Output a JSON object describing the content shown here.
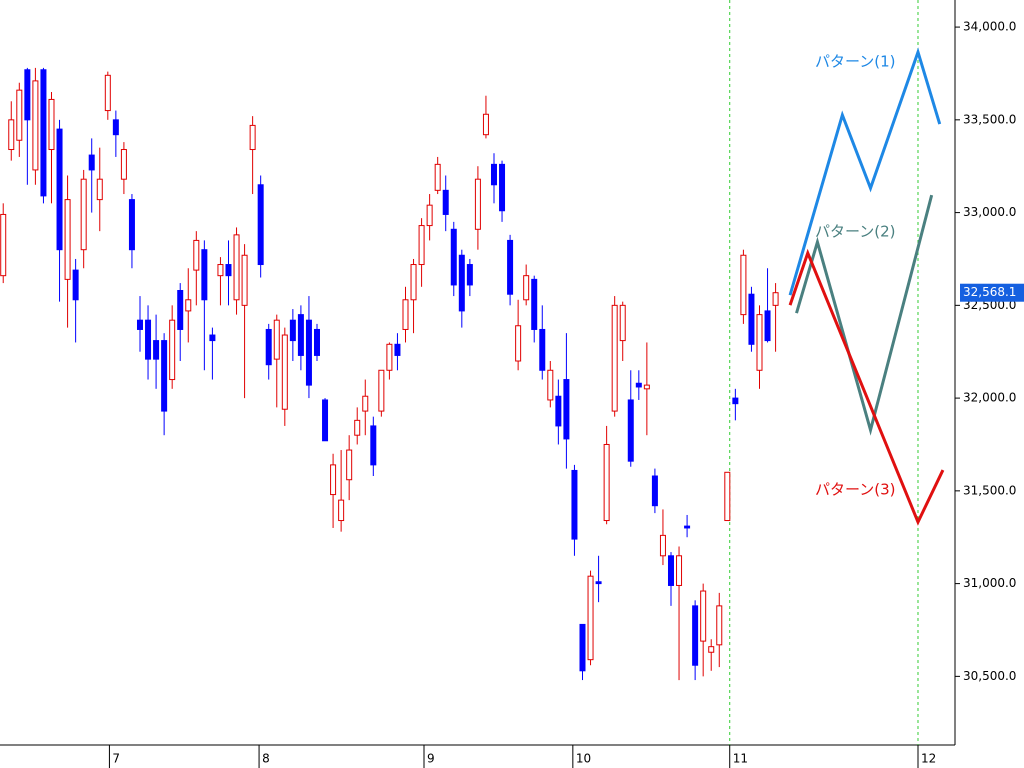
{
  "chart_data": {
    "type": "candlestick",
    "up_color": "#e00000",
    "down_color": "#0000ff",
    "x": [
      0,
      1,
      2,
      3,
      4,
      5,
      6,
      7,
      8,
      9,
      10,
      11,
      12,
      13,
      14,
      15,
      16,
      17,
      18,
      19,
      20,
      21,
      22,
      23,
      24,
      25,
      26,
      27,
      28,
      29,
      30,
      31,
      32,
      33,
      34,
      35,
      36,
      37,
      38,
      39,
      40,
      41,
      42,
      43,
      44,
      45,
      46,
      47,
      48,
      49,
      50,
      51,
      52,
      53,
      54,
      55,
      56,
      57,
      58,
      59,
      60,
      61,
      62,
      63,
      64,
      65,
      66,
      67,
      68,
      69,
      70,
      71,
      72,
      73,
      74,
      75,
      76,
      77,
      78,
      79,
      80,
      81,
      82,
      83,
      84,
      85,
      86,
      87,
      88,
      89,
      90,
      91,
      92,
      93,
      94,
      95,
      96
    ],
    "ohlc": [
      [
        32660,
        33050,
        32620,
        32990
      ],
      [
        33340,
        33600,
        33280,
        33500
      ],
      [
        33390,
        33700,
        33300,
        33660
      ],
      [
        33770,
        33780,
        33150,
        33500
      ],
      [
        33230,
        33780,
        33150,
        33710
      ],
      [
        33770,
        33780,
        33050,
        33090
      ],
      [
        33340,
        33650,
        33050,
        33610
      ],
      [
        33450,
        33500,
        32520,
        32800
      ],
      [
        32640,
        33200,
        32380,
        33070
      ],
      [
        32690,
        32750,
        32300,
        32530
      ],
      [
        32800,
        33230,
        32700,
        33180
      ],
      [
        33310,
        33400,
        33000,
        33230
      ],
      [
        33070,
        33350,
        32900,
        33180
      ],
      [
        33550,
        33760,
        33500,
        33740
      ],
      [
        33500,
        33550,
        33300,
        33420
      ],
      [
        33180,
        33380,
        33100,
        33340
      ],
      [
        33070,
        33100,
        32700,
        32800
      ],
      [
        32420,
        32550,
        32250,
        32370
      ],
      [
        32420,
        32500,
        32100,
        32210
      ],
      [
        32310,
        32450,
        32050,
        32210
      ],
      [
        32310,
        32350,
        31800,
        31930
      ],
      [
        32100,
        32500,
        32050,
        32420
      ],
      [
        32580,
        32620,
        32200,
        32370
      ],
      [
        32470,
        32700,
        32300,
        32530
      ],
      [
        32690,
        32900,
        32500,
        32850
      ],
      [
        32800,
        32850,
        32150,
        32530
      ],
      [
        32340,
        32380,
        32100,
        32310
      ],
      [
        32660,
        32760,
        32500,
        32720
      ],
      [
        32720,
        32850,
        32500,
        32660
      ],
      [
        32530,
        32920,
        32450,
        32880
      ],
      [
        32500,
        32830,
        32000,
        32770
      ],
      [
        33340,
        33520,
        33100,
        33470
      ],
      [
        33150,
        33200,
        32650,
        32720
      ],
      [
        32370,
        32400,
        32100,
        32180
      ],
      [
        32210,
        32450,
        31950,
        32420
      ],
      [
        31940,
        32380,
        31850,
        32340
      ],
      [
        32420,
        32480,
        32200,
        32310
      ],
      [
        32450,
        32500,
        32150,
        32230
      ],
      [
        32420,
        32550,
        32000,
        32070
      ],
      [
        32370,
        32400,
        32200,
        32230
      ],
      [
        31990,
        32000,
        31770,
        31770
      ],
      [
        31480,
        31700,
        31300,
        31640
      ],
      [
        31340,
        31720,
        31280,
        31450
      ],
      [
        31560,
        31800,
        31450,
        31720
      ],
      [
        31800,
        31950,
        31750,
        31880
      ],
      [
        31930,
        32100,
        31800,
        32010
      ],
      [
        31850,
        31900,
        31580,
        31640
      ],
      [
        31930,
        32150,
        31900,
        32150
      ],
      [
        32150,
        32300,
        32100,
        32290
      ],
      [
        32290,
        32350,
        32150,
        32230
      ],
      [
        32370,
        32600,
        32300,
        32530
      ],
      [
        32530,
        32750,
        32350,
        32720
      ],
      [
        32720,
        32970,
        32600,
        32930
      ],
      [
        32930,
        33100,
        32850,
        33040
      ],
      [
        33120,
        33300,
        33100,
        33260
      ],
      [
        33120,
        33200,
        32900,
        32990
      ],
      [
        32910,
        32950,
        32550,
        32610
      ],
      [
        32770,
        32800,
        32380,
        32470
      ],
      [
        32720,
        32750,
        32550,
        32610
      ],
      [
        32910,
        33250,
        32800,
        33180
      ],
      [
        33420,
        33630,
        33400,
        33530
      ],
      [
        33260,
        33320,
        33050,
        33150
      ],
      [
        33260,
        33280,
        32950,
        33010
      ],
      [
        32850,
        32880,
        32500,
        32560
      ],
      [
        32200,
        32530,
        32150,
        32390
      ],
      [
        32530,
        32720,
        32500,
        32660
      ],
      [
        32640,
        32660,
        32300,
        32370
      ],
      [
        32370,
        32500,
        32100,
        32150
      ],
      [
        31990,
        32200,
        31950,
        32150
      ],
      [
        32010,
        32100,
        31750,
        31850
      ],
      [
        32100,
        32350,
        31620,
        31780
      ],
      [
        31610,
        31640,
        31150,
        31240
      ],
      [
        30780,
        30780,
        30480,
        30530
      ],
      [
        30590,
        31070,
        30560,
        31040
      ],
      [
        31010,
        31150,
        30900,
        31000
      ],
      [
        31340,
        31850,
        31320,
        31750
      ],
      [
        31930,
        32550,
        31900,
        32500
      ],
      [
        32310,
        32520,
        32200,
        32500
      ],
      [
        31990,
        32150,
        31630,
        31660
      ],
      [
        32080,
        32150,
        31990,
        32060
      ],
      [
        32050,
        32300,
        31800,
        32070
      ],
      [
        31580,
        31620,
        31380,
        31420
      ],
      [
        31150,
        31400,
        31100,
        31260
      ],
      [
        31150,
        31170,
        30880,
        30990
      ],
      [
        30990,
        31200,
        30480,
        31150
      ],
      [
        31310,
        31370,
        31250,
        31300
      ],
      [
        30880,
        30910,
        30480,
        30560
      ],
      [
        30690,
        31000,
        30500,
        30960
      ],
      [
        30630,
        30700,
        30530,
        30660
      ],
      [
        30670,
        30950,
        30550,
        30880
      ],
      [
        31340,
        31600,
        31340,
        31600
      ],
      [
        32000,
        32050,
        31880,
        31970
      ],
      [
        32450,
        32800,
        32400,
        32770
      ],
      [
        32560,
        32600,
        32250,
        32290
      ],
      [
        32150,
        32500,
        32050,
        32450
      ],
      [
        32470,
        32700,
        32300,
        32310
      ],
      [
        32500,
        32620,
        32250,
        32568.1
      ]
    ],
    "patterns": [
      {
        "name": "パターン(1)",
        "color": "#1e88e5",
        "x": [
          97.8,
          104.3,
          107.8,
          113.7,
          116.4
        ],
        "values": [
          32555,
          33526,
          33132,
          33865,
          33477
        ]
      },
      {
        "name": "パターン(2)",
        "color": "#4a8080",
        "x": [
          98.6,
          101.2,
          107.8,
          115.4
        ],
        "values": [
          32458,
          32841,
          31828,
          33094
        ]
      },
      {
        "name": "パターン(3)",
        "color": "#e01010",
        "x": [
          97.8,
          100,
          113.7,
          116.8
        ],
        "values": [
          32501,
          32782,
          31332,
          31612
        ]
      }
    ],
    "vlines": [
      90.3,
      113.7
    ],
    "vline_color": "#33cc33",
    "last_price": {
      "value": 32568.1,
      "label": "32,568.1"
    },
    "xlim": [
      -0.4,
      118.3
    ],
    "ylim": [
      30130,
      34146
    ],
    "xticks": [
      {
        "value": 13.2,
        "label": "7"
      },
      {
        "value": 31.8,
        "label": "8"
      },
      {
        "value": 52.3,
        "label": "9"
      },
      {
        "value": 70.8,
        "label": "10"
      },
      {
        "value": 90.3,
        "label": "11"
      },
      {
        "value": 113.7,
        "label": "12"
      }
    ],
    "yticks": [
      {
        "value": 30500,
        "label": "30,500.0"
      },
      {
        "value": 31000,
        "label": "31,000.0"
      },
      {
        "value": 31500,
        "label": "31,500.0"
      },
      {
        "value": 32000,
        "label": "32,000.0"
      },
      {
        "value": 32500,
        "label": "32,500.0"
      },
      {
        "value": 33000,
        "label": "33,000.0"
      },
      {
        "value": 33500,
        "label": "33,500.0"
      },
      {
        "value": 34000,
        "label": "34,000.0"
      }
    ]
  }
}
